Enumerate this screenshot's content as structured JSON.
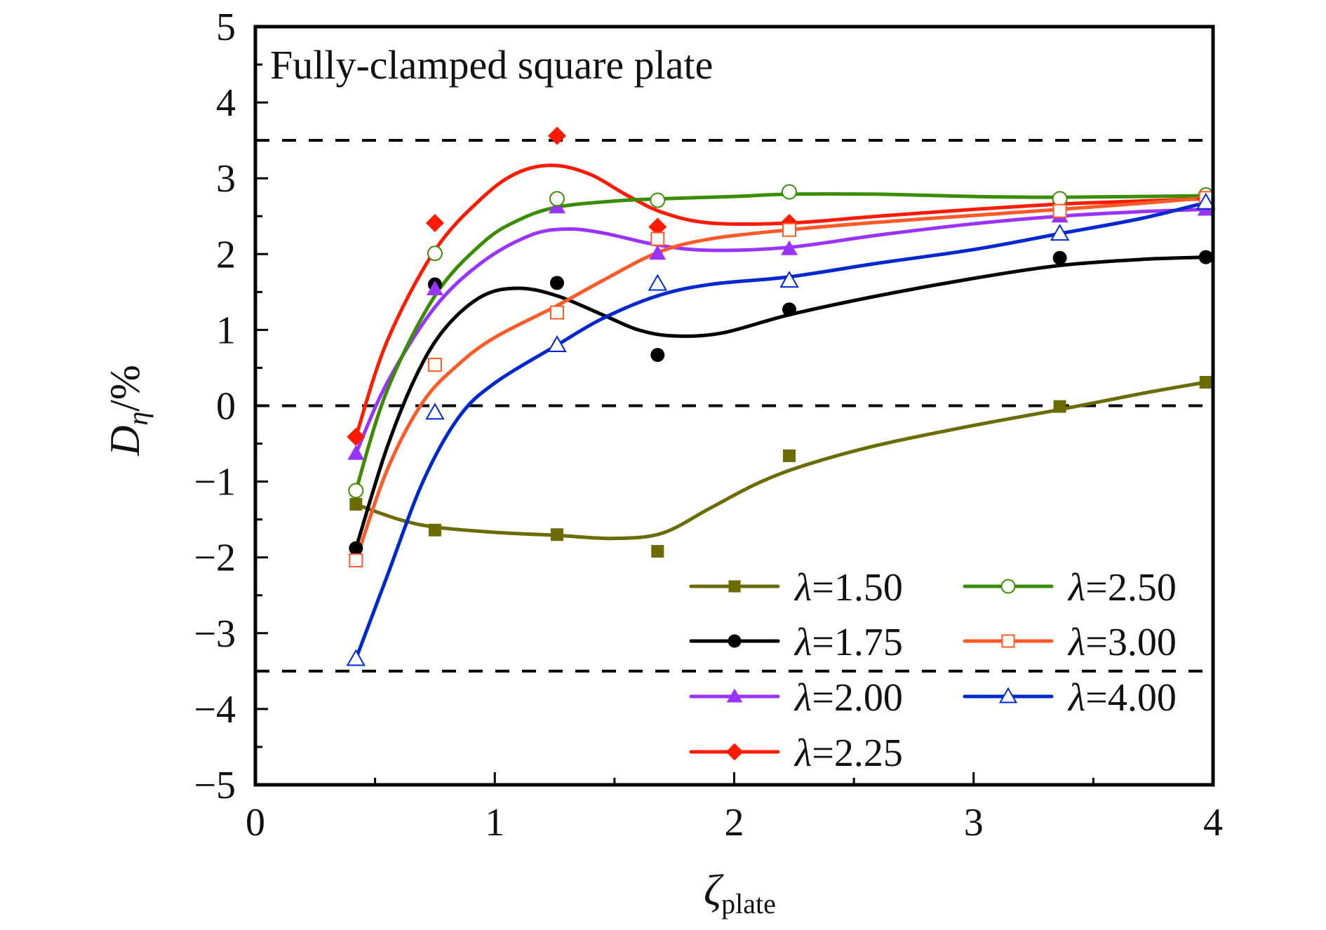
{
  "chart_data": {
    "type": "line",
    "title": "Fully-clamped square plate",
    "xlabel": "ζ",
    "xlabel_sub": "plate",
    "ylabel": "D",
    "ylabel_sub": "η",
    "ylabel_suffix": "/%",
    "xlim": [
      0,
      4
    ],
    "ylim": [
      -5,
      5
    ],
    "xticks": [
      0,
      1,
      2,
      3,
      4
    ],
    "xtick_labels": [
      "0",
      "1",
      "2",
      "3",
      "4"
    ],
    "yticks": [
      -5,
      -4,
      -3,
      -2,
      -1,
      0,
      1,
      2,
      3,
      4,
      5
    ],
    "ytick_labels": [
      "−5",
      "−4",
      "−3",
      "−2",
      "−1",
      "0",
      "1",
      "2",
      "3",
      "4",
      "5"
    ],
    "grid": false,
    "reference_lines": [
      3.5,
      0,
      -3.5
    ],
    "legend_position": "bottom-right",
    "x": [
      0.42,
      0.75,
      1.26,
      1.68,
      2.23,
      3.36,
      3.97
    ],
    "series": [
      {
        "name": "λ=1.50",
        "lambda_value": "1.50",
        "color": "#6b6b00",
        "marker": "filled-square",
        "values": [
          -1.3,
          -1.64,
          -1.7,
          -1.92,
          -0.66,
          -0.01,
          0.31
        ],
        "fit": [
          [
            0.42,
            -1.3
          ],
          [
            0.6,
            -1.5
          ],
          [
            0.75,
            -1.6
          ],
          [
            1.0,
            -1.67
          ],
          [
            1.26,
            -1.71
          ],
          [
            1.5,
            -1.75
          ],
          [
            1.7,
            -1.68
          ],
          [
            1.9,
            -1.35
          ],
          [
            2.1,
            -1.02
          ],
          [
            2.3,
            -0.78
          ],
          [
            2.6,
            -0.52
          ],
          [
            3.0,
            -0.26
          ],
          [
            3.36,
            -0.05
          ],
          [
            3.7,
            0.16
          ],
          [
            3.97,
            0.31
          ]
        ]
      },
      {
        "name": "λ=1.75",
        "lambda_value": "1.75",
        "color": "#000000",
        "marker": "filled-circle",
        "values": [
          -1.88,
          1.6,
          1.62,
          0.67,
          1.27,
          1.95,
          1.96
        ],
        "fit": [
          [
            0.42,
            -1.88
          ],
          [
            0.55,
            -0.55
          ],
          [
            0.68,
            0.45
          ],
          [
            0.8,
            1.05
          ],
          [
            0.95,
            1.45
          ],
          [
            1.1,
            1.55
          ],
          [
            1.26,
            1.45
          ],
          [
            1.45,
            1.2
          ],
          [
            1.6,
            1.0
          ],
          [
            1.75,
            0.92
          ],
          [
            1.95,
            0.96
          ],
          [
            2.23,
            1.2
          ],
          [
            2.6,
            1.45
          ],
          [
            3.0,
            1.68
          ],
          [
            3.36,
            1.85
          ],
          [
            3.7,
            1.93
          ],
          [
            3.97,
            1.96
          ]
        ]
      },
      {
        "name": "λ=2.00",
        "lambda_value": "2.00",
        "color": "#9933ff",
        "marker": "filled-triangle",
        "values": [
          -0.63,
          1.54,
          2.62,
          2.01,
          2.07,
          2.5,
          2.59
        ],
        "fit": [
          [
            0.42,
            -0.63
          ],
          [
            0.55,
            0.3
          ],
          [
            0.75,
            1.3
          ],
          [
            0.95,
            1.9
          ],
          [
            1.15,
            2.25
          ],
          [
            1.3,
            2.33
          ],
          [
            1.45,
            2.28
          ],
          [
            1.68,
            2.12
          ],
          [
            1.9,
            2.05
          ],
          [
            2.23,
            2.09
          ],
          [
            2.6,
            2.25
          ],
          [
            3.0,
            2.4
          ],
          [
            3.36,
            2.5
          ],
          [
            3.7,
            2.56
          ],
          [
            3.97,
            2.59
          ]
        ]
      },
      {
        "name": "λ=2.25",
        "lambda_value": "2.25",
        "color": "#ff1a00",
        "marker": "filled-diamond",
        "values": [
          -0.41,
          2.41,
          3.56,
          2.36,
          2.41,
          2.66,
          2.73
        ],
        "fit": [
          [
            0.42,
            -0.41
          ],
          [
            0.55,
            0.85
          ],
          [
            0.75,
            2.05
          ],
          [
            0.95,
            2.75
          ],
          [
            1.1,
            3.08
          ],
          [
            1.25,
            3.17
          ],
          [
            1.4,
            3.05
          ],
          [
            1.55,
            2.78
          ],
          [
            1.7,
            2.55
          ],
          [
            1.9,
            2.41
          ],
          [
            2.23,
            2.41
          ],
          [
            2.6,
            2.5
          ],
          [
            3.0,
            2.59
          ],
          [
            3.36,
            2.66
          ],
          [
            3.7,
            2.7
          ],
          [
            3.97,
            2.73
          ]
        ]
      },
      {
        "name": "λ=2.50",
        "lambda_value": "2.50",
        "color": "#3a8c00",
        "marker": "open-circle",
        "values": [
          -1.12,
          2.01,
          2.73,
          2.71,
          2.82,
          2.73,
          2.78
        ],
        "fit": [
          [
            0.42,
            -1.12
          ],
          [
            0.55,
            0.2
          ],
          [
            0.75,
            1.45
          ],
          [
            0.95,
            2.15
          ],
          [
            1.1,
            2.45
          ],
          [
            1.26,
            2.62
          ],
          [
            1.5,
            2.7
          ],
          [
            1.7,
            2.73
          ],
          [
            2.0,
            2.76
          ],
          [
            2.23,
            2.79
          ],
          [
            2.6,
            2.79
          ],
          [
            3.0,
            2.76
          ],
          [
            3.36,
            2.75
          ],
          [
            3.97,
            2.77
          ]
        ]
      },
      {
        "name": "λ=3.00",
        "lambda_value": "3.00",
        "color": "#ff5a28",
        "marker": "open-square",
        "values": [
          -2.04,
          0.54,
          1.23,
          2.2,
          2.32,
          2.57,
          2.74
        ],
        "fit": [
          [
            0.42,
            -2.04
          ],
          [
            0.55,
            -0.85
          ],
          [
            0.7,
            0.05
          ],
          [
            0.85,
            0.55
          ],
          [
            1.0,
            0.9
          ],
          [
            1.26,
            1.32
          ],
          [
            1.45,
            1.65
          ],
          [
            1.68,
            2.02
          ],
          [
            1.9,
            2.2
          ],
          [
            2.23,
            2.32
          ],
          [
            2.6,
            2.42
          ],
          [
            3.0,
            2.51
          ],
          [
            3.36,
            2.59
          ],
          [
            3.7,
            2.67
          ],
          [
            3.97,
            2.74
          ]
        ]
      },
      {
        "name": "λ=4.00",
        "lambda_value": "4.00",
        "color": "#0028d0",
        "marker": "open-triangle",
        "values": [
          -3.34,
          -0.09,
          0.8,
          1.61,
          1.65,
          2.27,
          2.68
        ],
        "fit": [
          [
            0.42,
            -3.34
          ],
          [
            0.55,
            -2.25
          ],
          [
            0.7,
            -1.0
          ],
          [
            0.85,
            -0.15
          ],
          [
            1.0,
            0.3
          ],
          [
            1.26,
            0.8
          ],
          [
            1.45,
            1.15
          ],
          [
            1.68,
            1.45
          ],
          [
            1.9,
            1.6
          ],
          [
            2.23,
            1.7
          ],
          [
            2.6,
            1.88
          ],
          [
            3.0,
            2.06
          ],
          [
            3.36,
            2.27
          ],
          [
            3.7,
            2.47
          ],
          [
            3.97,
            2.68
          ]
        ]
      }
    ]
  }
}
